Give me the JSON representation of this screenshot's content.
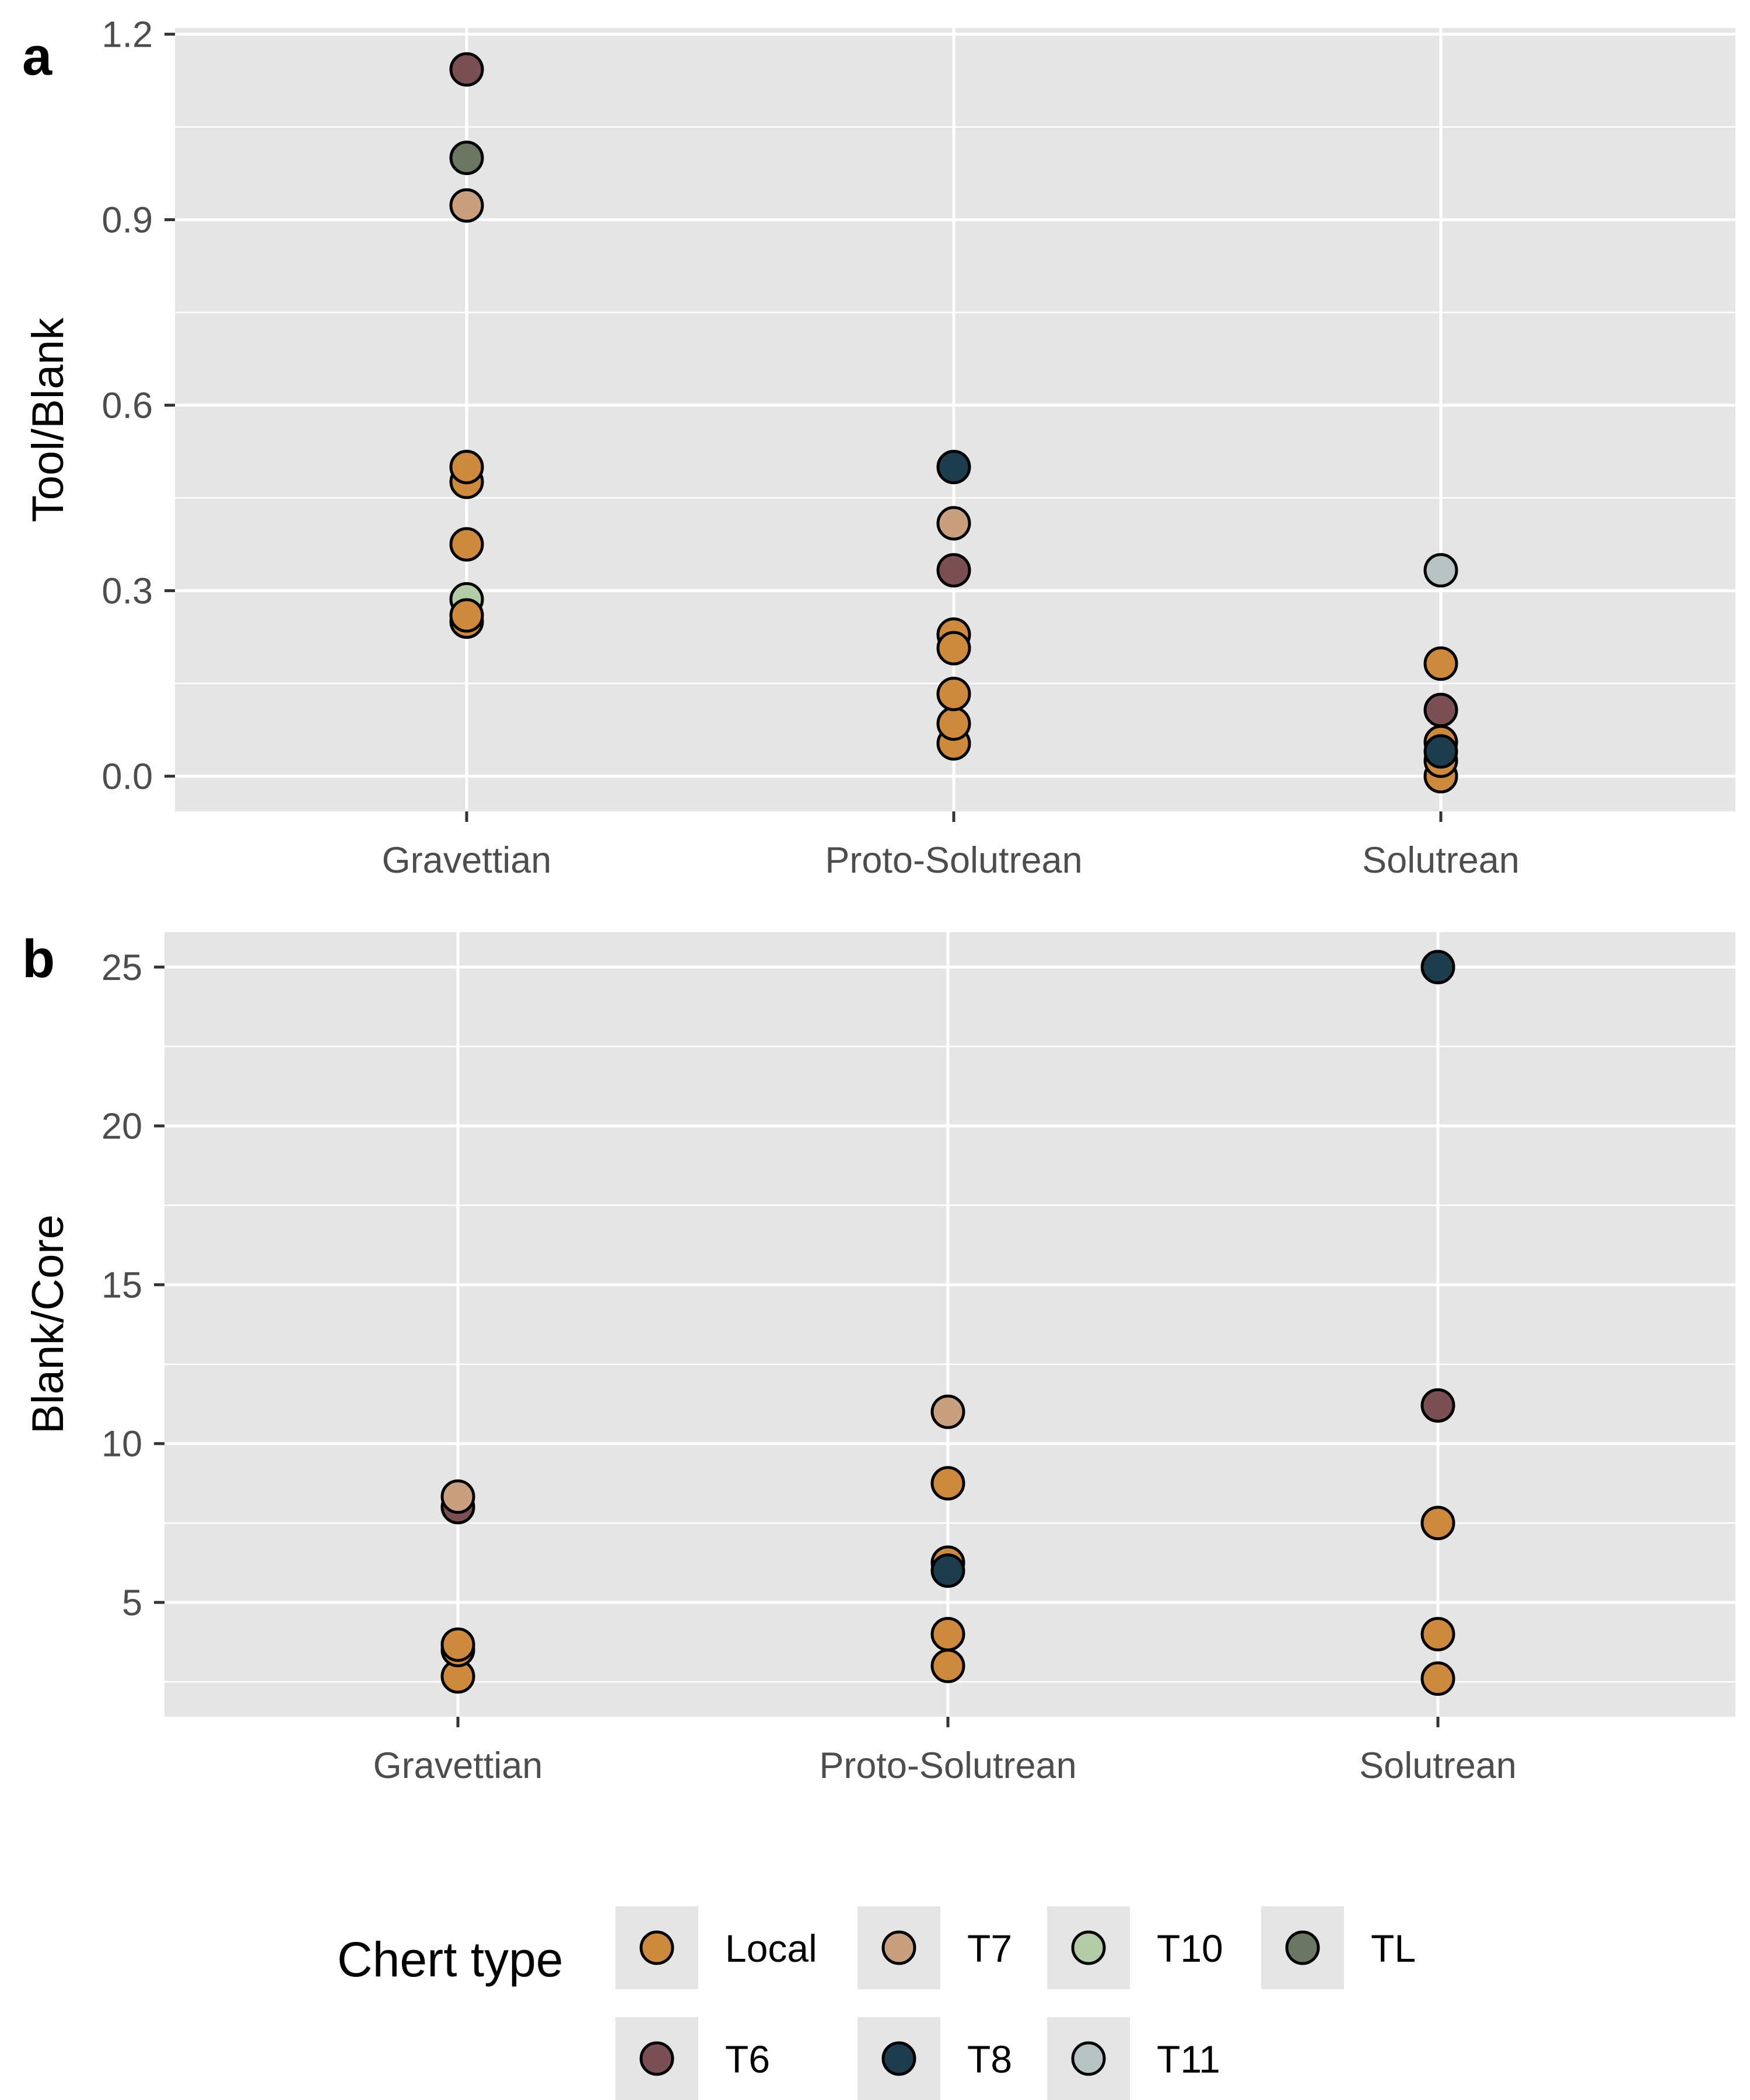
{
  "colors": {
    "Local": "#CD8A3E",
    "T6": "#7B5054",
    "T7": "#C8A080",
    "T8": "#1D3C4D",
    "T10": "#B3CBA9",
    "T11": "#B7C2C3",
    "TL": "#6B7763",
    "panel_bg": "#E5E5E5",
    "grid": "#FFFFFF"
  },
  "chart_data": [
    {
      "type": "scatter",
      "panel_label": "a",
      "xlabel": "",
      "ylabel": "Tool/Blank",
      "categories": [
        "Gravettian",
        "Proto-Solutrean",
        "Solutrean"
      ],
      "ylim": [
        -0.057,
        1.21
      ],
      "yticks": [
        0.0,
        0.3,
        0.6,
        0.9,
        1.2
      ],
      "ytick_labels": [
        "0.0",
        "0.3",
        "0.6",
        "0.9",
        "1.2"
      ],
      "grid": true,
      "points": [
        {
          "x": "Gravettian",
          "y": 0.25,
          "chert": "Local"
        },
        {
          "x": "Gravettian",
          "y": 0.286,
          "chert": "T10"
        },
        {
          "x": "Gravettian",
          "y": 0.26,
          "chert": "Local"
        },
        {
          "x": "Gravettian",
          "y": 0.375,
          "chert": "Local"
        },
        {
          "x": "Gravettian",
          "y": 0.476,
          "chert": "Local"
        },
        {
          "x": "Gravettian",
          "y": 0.5,
          "chert": "Local"
        },
        {
          "x": "Gravettian",
          "y": 0.923,
          "chert": "T7"
        },
        {
          "x": "Gravettian",
          "y": 1.0,
          "chert": "TL"
        },
        {
          "x": "Gravettian",
          "y": 1.143,
          "chert": "T6"
        },
        {
          "x": "Proto-Solutrean",
          "y": 0.053,
          "chert": "Local"
        },
        {
          "x": "Proto-Solutrean",
          "y": 0.085,
          "chert": "Local"
        },
        {
          "x": "Proto-Solutrean",
          "y": 0.133,
          "chert": "Local"
        },
        {
          "x": "Proto-Solutrean",
          "y": 0.229,
          "chert": "Local"
        },
        {
          "x": "Proto-Solutrean",
          "y": 0.207,
          "chert": "Local"
        },
        {
          "x": "Proto-Solutrean",
          "y": 0.333,
          "chert": "T6"
        },
        {
          "x": "Proto-Solutrean",
          "y": 0.409,
          "chert": "T7"
        },
        {
          "x": "Proto-Solutrean",
          "y": 0.5,
          "chert": "T8"
        },
        {
          "x": "Solutrean",
          "y": 0.0,
          "chert": "Local"
        },
        {
          "x": "Solutrean",
          "y": 0.025,
          "chert": "Local"
        },
        {
          "x": "Solutrean",
          "y": 0.055,
          "chert": "Local"
        },
        {
          "x": "Solutrean",
          "y": 0.107,
          "chert": "T6"
        },
        {
          "x": "Solutrean",
          "y": 0.04,
          "chert": "T8"
        },
        {
          "x": "Solutrean",
          "y": 0.182,
          "chert": "Local"
        },
        {
          "x": "Solutrean",
          "y": 0.333,
          "chert": "T11"
        }
      ]
    },
    {
      "type": "scatter",
      "panel_label": "b",
      "xlabel": "",
      "ylabel": "Blank/Core",
      "categories": [
        "Gravettian",
        "Proto-Solutrean",
        "Solutrean"
      ],
      "ylim": [
        1.4,
        26.1
      ],
      "yticks": [
        5,
        10,
        15,
        20,
        25
      ],
      "ytick_labels": [
        "5",
        "10",
        "15",
        "20",
        "25"
      ],
      "grid": true,
      "points": [
        {
          "x": "Gravettian",
          "y": 2.67,
          "chert": "Local"
        },
        {
          "x": "Gravettian",
          "y": 3.5,
          "chert": "Local"
        },
        {
          "x": "Gravettian",
          "y": 3.67,
          "chert": "Local"
        },
        {
          "x": "Gravettian",
          "y": 8.0,
          "chert": "T6"
        },
        {
          "x": "Gravettian",
          "y": 8.33,
          "chert": "T7"
        },
        {
          "x": "Proto-Solutrean",
          "y": 3.0,
          "chert": "Local"
        },
        {
          "x": "Proto-Solutrean",
          "y": 4.0,
          "chert": "Local"
        },
        {
          "x": "Proto-Solutrean",
          "y": 6.25,
          "chert": "Local"
        },
        {
          "x": "Proto-Solutrean",
          "y": 6.0,
          "chert": "T8"
        },
        {
          "x": "Proto-Solutrean",
          "y": 8.75,
          "chert": "Local"
        },
        {
          "x": "Proto-Solutrean",
          "y": 11.0,
          "chert": "T7"
        },
        {
          "x": "Solutrean",
          "y": 2.6,
          "chert": "Local"
        },
        {
          "x": "Solutrean",
          "y": 4.0,
          "chert": "Local"
        },
        {
          "x": "Solutrean",
          "y": 7.5,
          "chert": "Local"
        },
        {
          "x": "Solutrean",
          "y": 11.2,
          "chert": "T6"
        },
        {
          "x": "Solutrean",
          "y": 25.0,
          "chert": "T8"
        }
      ]
    }
  ],
  "legend": {
    "title": "Chert type",
    "entries": [
      "Local",
      "T7",
      "T10",
      "TL",
      "T6",
      "T8",
      "T11"
    ]
  }
}
